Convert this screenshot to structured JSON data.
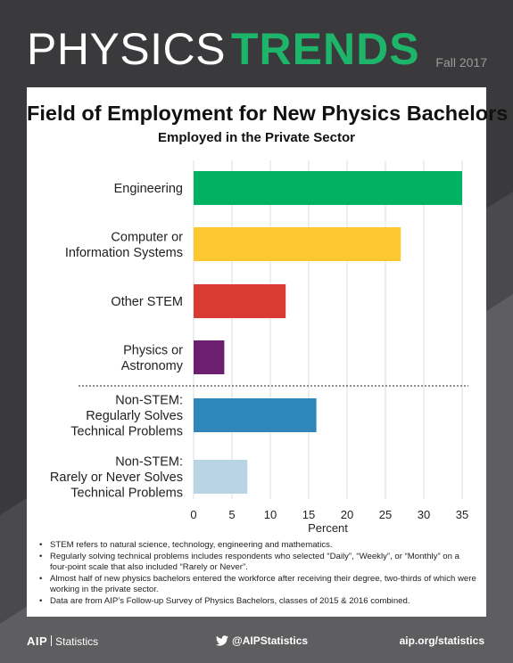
{
  "header": {
    "brand_light": "PHYSICS",
    "brand_bold": "TRENDS",
    "issue": "Fall 2017"
  },
  "colors": {
    "brand_green": "#1db56a",
    "background_dark": "#3a3a3c"
  },
  "chart_data": {
    "type": "bar",
    "orientation": "horizontal",
    "title": "Field of Employment for New Physics Bachelors",
    "subtitle": "Employed in the Private Sector",
    "categories": [
      "Engineering",
      "Computer or Information Systems",
      "Other STEM",
      "Physics or Astronomy",
      "Non-STEM: Regularly Solves Technical Problems",
      "Non-STEM: Rarely or Never Solves Technical Problems"
    ],
    "category_lines": [
      [
        "Engineering"
      ],
      [
        "Computer or",
        "Information Systems"
      ],
      [
        "Other STEM"
      ],
      [
        "Physics or",
        "Astronomy"
      ],
      [
        "Non-STEM:",
        "Regularly Solves",
        "Technical Problems"
      ],
      [
        "Non-STEM:",
        "Rarely or Never Solves",
        "Technical Problems"
      ]
    ],
    "values": [
      35,
      27,
      12,
      4,
      16,
      7
    ],
    "colors": [
      "#00b262",
      "#fdc730",
      "#d93a32",
      "#6b1f6e",
      "#2f86b8",
      "#b9d5e5"
    ],
    "xlabel": "Percent",
    "xlim": [
      0,
      35
    ],
    "ticks": [
      "0",
      "5",
      "10",
      "15",
      "20",
      "25",
      "30",
      "35"
    ],
    "grid": "vertical",
    "separator": "dashed line between Physics or Astronomy and Non-STEM groups"
  },
  "notes": [
    "STEM refers to natural science, technology, engineering and mathematics.",
    "Regularly solving technical problems includes respondents who selected “Daily”, “Weekly”, or “Monthly” on a four-point scale that also included “Rarely or Never”.",
    "Almost half of new physics bachelors entered the workforce after receiving their degree, two-thirds of which were working in the private sector.",
    "Data are from AIP’s Follow-up Survey of Physics Bachelors, classes of 2015 & 2016 combined."
  ],
  "footer": {
    "logo_mark": "AIP",
    "logo_text": "Statistics",
    "twitter": "@AIPStatistics",
    "website": "aip.org/statistics"
  }
}
